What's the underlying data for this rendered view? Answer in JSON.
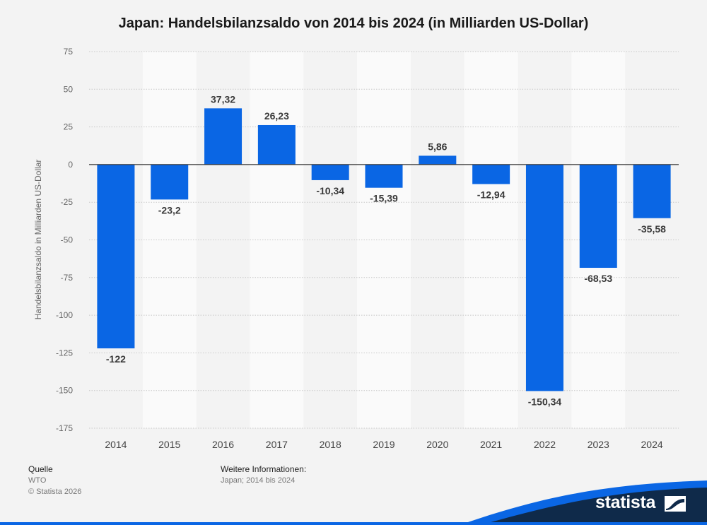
{
  "title": "Japan: Handelsbilanzsaldo von 2014 bis 2024 (in Milliarden US-Dollar)",
  "chart_data": {
    "type": "bar",
    "title": "Japan: Handelsbilanzsaldo von 2014 bis 2024 (in Milliarden US-Dollar)",
    "xlabel": "",
    "ylabel": "Handelsbilanzsaldo in Milliarden US-Dollar",
    "categories": [
      "2014",
      "2015",
      "2016",
      "2017",
      "2018",
      "2019",
      "2020",
      "2021",
      "2022",
      "2023",
      "2024"
    ],
    "values": [
      -122,
      -23.2,
      37.32,
      26.23,
      -10.34,
      -15.39,
      5.86,
      -12.94,
      -150.34,
      -68.53,
      -35.58
    ],
    "data_labels": [
      "-122",
      "-23,2",
      "37,32",
      "26,23",
      "-10,34",
      "-15,39",
      "5,86",
      "-12,94",
      "-150,34",
      "-68,53",
      "-35,58"
    ],
    "ylim": [
      -175,
      75
    ],
    "yticks": [
      75,
      50,
      25,
      0,
      -25,
      -50,
      -75,
      -100,
      -125,
      -150,
      -175
    ],
    "ytick_labels": [
      "75",
      "50",
      "25",
      "0",
      "-25",
      "-50",
      "-75",
      "-100",
      "-125",
      "-150",
      "-175"
    ],
    "grid": true,
    "bar_color": "#0a66e4"
  },
  "footer": {
    "source_heading": "Quelle",
    "source": "WTO",
    "copyright": "© Statista 2026",
    "info_heading": "Weitere Informationen:",
    "info": "Japan; 2014 bis 2024"
  },
  "logo": {
    "text": "statista",
    "band_color": "#0f2a4a",
    "accent_color": "#0a66e4"
  }
}
